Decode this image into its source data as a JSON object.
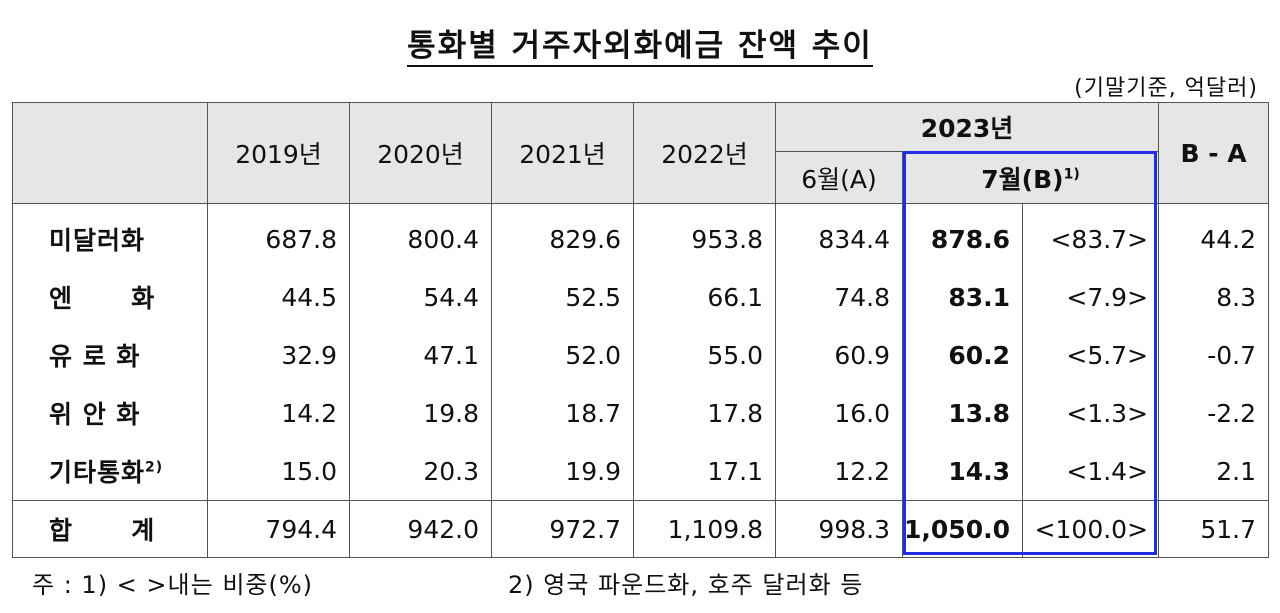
{
  "title": "통화별 거주자외화예금 잔액 추이",
  "unit_note": "(기말기준, 억달러)",
  "headers": {
    "y2019": "2019년",
    "y2020": "2020년",
    "y2021": "2021년",
    "y2022": "2022년",
    "y2023": "2023년",
    "jun": "6월(A)",
    "jul": "7월(B)",
    "jul_sup": "1)",
    "diff": "B - A"
  },
  "rows": [
    {
      "label": "미달러화",
      "sup": "",
      "v2019": "687.8",
      "v2020": "800.4",
      "v2021": "829.6",
      "v2022": "953.8",
      "jun": "834.4",
      "jul": "878.6",
      "ratio": "<83.7>",
      "diff": "44.2"
    },
    {
      "label": "엔      화",
      "sup": "",
      "v2019": "44.5",
      "v2020": "54.4",
      "v2021": "52.5",
      "v2022": "66.1",
      "jun": "74.8",
      "jul": "83.1",
      "ratio": "<7.9>",
      "diff": "8.3"
    },
    {
      "label": "유 로 화",
      "sup": "",
      "v2019": "32.9",
      "v2020": "47.1",
      "v2021": "52.0",
      "v2022": "55.0",
      "jun": "60.9",
      "jul": "60.2",
      "ratio": "<5.7>",
      "diff": "-0.7"
    },
    {
      "label": "위 안 화",
      "sup": "",
      "v2019": "14.2",
      "v2020": "19.8",
      "v2021": "18.7",
      "v2022": "17.8",
      "jun": "16.0",
      "jul": "13.8",
      "ratio": "<1.3>",
      "diff": "-2.2"
    },
    {
      "label": "기타통화",
      "sup": "2)",
      "v2019": "15.0",
      "v2020": "20.3",
      "v2021": "19.9",
      "v2022": "17.1",
      "jun": "12.2",
      "jul": "14.3",
      "ratio": "<1.4>",
      "diff": "2.1"
    }
  ],
  "total": {
    "label": "합      계",
    "v2019": "794.4",
    "v2020": "942.0",
    "v2021": "972.7",
    "v2022": "1,109.8",
    "jun": "998.3",
    "jul": "1,050.0",
    "ratio": "<100.0>",
    "diff": "51.7"
  },
  "footnotes": {
    "note1": "주 : 1) <    >내는 비중(%)",
    "note2": "2) 영국 파운드화, 호주 달러화 등"
  },
  "colors": {
    "highlight_border": "#1f2fe6",
    "header_bg": "#e6e6e6"
  }
}
